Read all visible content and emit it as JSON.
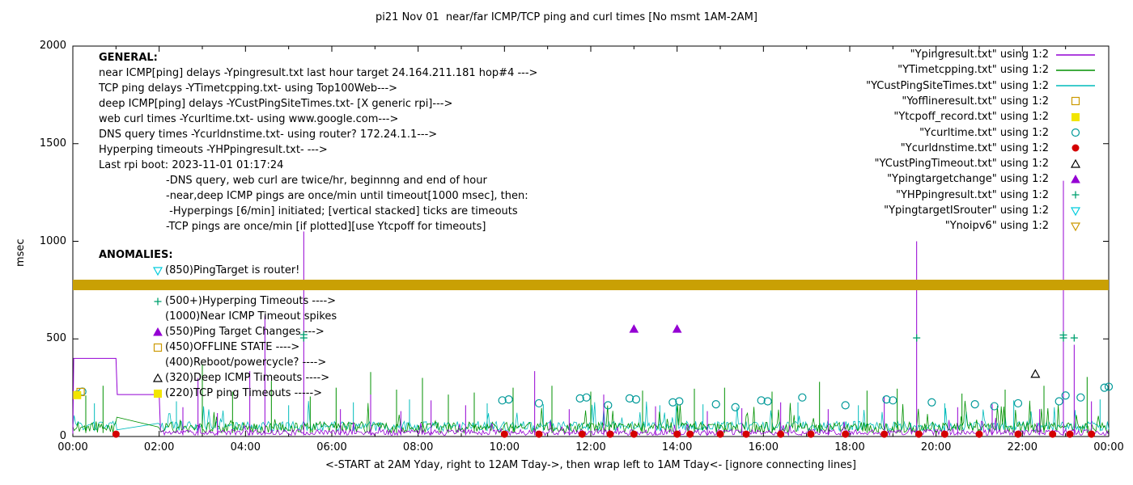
{
  "title": "pi21 Nov 01  near/far ICMP/TCP ping and curl times [No msmt 1AM-2AM]",
  "axes": {
    "ylabel": "msec",
    "xlabel": "<-START at 2AM Yday, right to 12AM Tday->, then wrap left to 1AM Tday<- [ignore connecting lines]",
    "ylim": [
      0,
      2000
    ],
    "yticks": [
      0,
      500,
      1000,
      1500,
      2000
    ],
    "xticks": [
      "00:00",
      "02:00",
      "04:00",
      "06:00",
      "08:00",
      "10:00",
      "12:00",
      "14:00",
      "16:00",
      "18:00",
      "20:00",
      "22:00",
      "00:00"
    ],
    "x_hours_range": [
      0,
      24
    ]
  },
  "legend": [
    {
      "label": "\"Ypingresult.txt\" using 1:2",
      "marker": "line",
      "color": "#9400d3"
    },
    {
      "label": "\"YTimetcpping.txt\" using 1:2",
      "marker": "line",
      "color": "#009100"
    },
    {
      "label": "\"YCustPingSiteTimes.txt\" using 1:2",
      "marker": "line",
      "color": "#00bbbb"
    },
    {
      "label": "\"Yofflineresult.txt\" using 1:2",
      "marker": "square-open",
      "color": "#cc9900"
    },
    {
      "label": "\"Ytcpoff_record.txt\" using 1:2",
      "marker": "square-filled",
      "color": "#f2e500"
    },
    {
      "label": "\"Ycurltime.txt\" using 1:2",
      "marker": "circle-open",
      "color": "#009999"
    },
    {
      "label": "\"Ycurldnstime.txt\" using 1:2",
      "marker": "circle-filled",
      "color": "#d40000"
    },
    {
      "label": "\"YCustPingTimeout.txt\" using 1:2",
      "marker": "triangle-open",
      "color": "#000000"
    },
    {
      "label": "\"Ypingtargetchange\" using 1:2",
      "marker": "triangle-filled",
      "color": "#9400d3"
    },
    {
      "label": "\"YHPpingresult.txt\" using 1:2",
      "marker": "plus",
      "color": "#00a070"
    },
    {
      "label": "\"YpingtargetISrouter\" using 1:2",
      "marker": "triangle-down-open",
      "color": "#00ccdd"
    },
    {
      "label": "\"Ynoipv6\" using 1:2",
      "marker": "triangle-down-open",
      "color": "#cc9900"
    }
  ],
  "general_notes": {
    "heading": "GENERAL:",
    "lines": [
      "near ICMP[ping] delays -Ypingresult.txt last hour target 24.164.211.181 hop#4 --->",
      "TCP ping delays -YTimetcpping.txt- using Top100Web--->",
      "deep ICMP[ping] delays -YCustPingSiteTimes.txt- [X generic rpi]--->",
      "web curl times -Ycurltime.txt- using www.google.com--->",
      "DNS query times -Ycurldnstime.txt- using router? 172.24.1.1--->",
      "Hyperping timeouts -YHPpingresult.txt- --->",
      "Last rpi boot: 2023-11-01 01:17:24"
    ],
    "indented_lines": [
      "-DNS query, web curl are twice/hr, beginnng and end of hour",
      "-near,deep ICMP pings are once/min until timeout[1000 msec], then:",
      " -Hyperpings [6/min] initiated; [vertical stacked] ticks are timeouts",
      "-TCP pings are once/min [if plotted][use Ytcpoff for timeouts]"
    ]
  },
  "anomalies": {
    "heading": "ANOMALIES:",
    "items": [
      {
        "marker": "triangle-down-open",
        "color": "#00ccdd",
        "text": "(850)PingTarget is router!"
      },
      {
        "marker": "none",
        "color": "",
        "text": ""
      },
      {
        "marker": "plus",
        "color": "#00a070",
        "text": "(500+)Hyperping Timeouts ---->"
      },
      {
        "marker": "none",
        "color": "",
        "text": "(1000)Near ICMP Timeout spikes"
      },
      {
        "marker": "triangle-filled",
        "color": "#9400d3",
        "text": "(550)Ping Target Changes --->"
      },
      {
        "marker": "square-open",
        "color": "#cc9900",
        "text": "(450)OFFLINE STATE ---->"
      },
      {
        "marker": "none",
        "color": "",
        "text": "(400)Reboot/powercycle? ---->"
      },
      {
        "marker": "triangle-open",
        "color": "#000000",
        "text": "(320)Deep ICMP Timeouts ---->"
      },
      {
        "marker": "square-filled",
        "color": "#f2e500",
        "text": "(220)TCP ping Timeouts ----->"
      }
    ]
  },
  "chart_data": {
    "type": "line",
    "x_unit": "hours",
    "xlim": [
      0,
      24
    ],
    "ylim": [
      0,
      2000
    ],
    "grid": false,
    "legend_position": "top-right",
    "series": [
      {
        "name": "Ypingresult.txt",
        "style": "line",
        "color": "#9400d3",
        "base": 6,
        "amp": 30,
        "noise_start": 2.03,
        "segments": [
          [
            0,
            15
          ],
          [
            0.02,
            400
          ],
          [
            1.0,
            400
          ],
          [
            1.03,
            215
          ],
          [
            2.0,
            215
          ],
          [
            2.03,
            30
          ]
        ],
        "spikes": [
          [
            2.55,
            150
          ],
          [
            2.9,
            300
          ],
          [
            3.35,
            120
          ],
          [
            4.1,
            335
          ],
          [
            4.45,
            620
          ],
          [
            5.35,
            1050
          ],
          [
            6.2,
            140
          ],
          [
            6.9,
            215
          ],
          [
            7.6,
            130
          ],
          [
            8.3,
            185
          ],
          [
            9.1,
            160
          ],
          [
            10.7,
            335
          ],
          [
            11.5,
            140
          ],
          [
            12.3,
            215
          ],
          [
            13.5,
            155
          ],
          [
            14.7,
            130
          ],
          [
            15.5,
            145
          ],
          [
            16.4,
            175
          ],
          [
            17.5,
            140
          ],
          [
            18.8,
            205
          ],
          [
            19.55,
            1000
          ],
          [
            20.5,
            150
          ],
          [
            21.3,
            165
          ],
          [
            22.4,
            140
          ],
          [
            22.95,
            1310
          ],
          [
            23.2,
            470
          ],
          [
            23.6,
            180
          ]
        ]
      },
      {
        "name": "YTimetcpping.txt",
        "style": "line",
        "color": "#009100",
        "base": 18,
        "amp": 55,
        "noise_start": 0,
        "spikes": [
          [
            0.3,
            210
          ],
          [
            0.7,
            260
          ],
          [
            3.0,
            370
          ],
          [
            3.7,
            230
          ],
          [
            4.6,
            285
          ],
          [
            5.5,
            205
          ],
          [
            6.1,
            250
          ],
          [
            6.9,
            330
          ],
          [
            7.5,
            240
          ],
          [
            8.1,
            300
          ],
          [
            8.7,
            215
          ],
          [
            9.3,
            225
          ],
          [
            10.2,
            250
          ],
          [
            11.1,
            260
          ],
          [
            12.0,
            230
          ],
          [
            13.2,
            235
          ],
          [
            14.4,
            245
          ],
          [
            15.1,
            250
          ],
          [
            16.2,
            230
          ],
          [
            17.3,
            280
          ],
          [
            18.4,
            235
          ],
          [
            19.1,
            245
          ],
          [
            20.6,
            220
          ],
          [
            21.6,
            240
          ],
          [
            22.5,
            260
          ],
          [
            23.5,
            305
          ]
        ]
      },
      {
        "name": "YCustPingSiteTimes.txt",
        "style": "line",
        "color": "#00bbbb",
        "base": 28,
        "amp": 50,
        "noise_start": 0,
        "spikes": [
          [
            0.5,
            170
          ],
          [
            2.4,
            180
          ],
          [
            5.0,
            160
          ],
          [
            6.5,
            175
          ],
          [
            7.8,
            190
          ],
          [
            9.6,
            170
          ],
          [
            10.9,
            165
          ],
          [
            12.0,
            185
          ],
          [
            13.6,
            160
          ],
          [
            14.6,
            165
          ],
          [
            16.8,
            175
          ],
          [
            18.2,
            160
          ],
          [
            20.2,
            170
          ],
          [
            21.8,
            185
          ],
          [
            23.8,
            190
          ]
        ]
      },
      {
        "name": "Ycurltime.txt",
        "style": "points",
        "marker": "circle-open",
        "color": "#009999",
        "points": [
          [
            0.1,
            215
          ],
          [
            0.22,
            230
          ],
          [
            9.95,
            185
          ],
          [
            10.1,
            190
          ],
          [
            10.8,
            170
          ],
          [
            11.75,
            195
          ],
          [
            11.9,
            200
          ],
          [
            12.4,
            160
          ],
          [
            12.9,
            195
          ],
          [
            13.05,
            190
          ],
          [
            13.9,
            175
          ],
          [
            14.05,
            180
          ],
          [
            14.9,
            165
          ],
          [
            15.35,
            150
          ],
          [
            15.95,
            185
          ],
          [
            16.1,
            180
          ],
          [
            16.9,
            200
          ],
          [
            17.9,
            160
          ],
          [
            18.85,
            190
          ],
          [
            19.0,
            185
          ],
          [
            19.9,
            175
          ],
          [
            20.9,
            165
          ],
          [
            21.35,
            155
          ],
          [
            21.9,
            170
          ],
          [
            22.85,
            180
          ],
          [
            23.0,
            210
          ],
          [
            23.35,
            200
          ],
          [
            23.9,
            250
          ],
          [
            24.0,
            255
          ]
        ]
      },
      {
        "name": "Ycurldnstime.txt",
        "style": "points",
        "marker": "circle-filled",
        "color": "#d40000",
        "points": [
          [
            1.0,
            12
          ],
          [
            10.0,
            12
          ],
          [
            10.8,
            12
          ],
          [
            11.8,
            12
          ],
          [
            12.45,
            12
          ],
          [
            13.0,
            12
          ],
          [
            14.0,
            12
          ],
          [
            14.3,
            12
          ],
          [
            15.0,
            12
          ],
          [
            15.6,
            12
          ],
          [
            16.4,
            12
          ],
          [
            17.1,
            12
          ],
          [
            17.9,
            12
          ],
          [
            18.8,
            12
          ],
          [
            19.6,
            12
          ],
          [
            20.2,
            12
          ],
          [
            21.0,
            12
          ],
          [
            21.9,
            12
          ],
          [
            22.7,
            12
          ],
          [
            23.1,
            12
          ],
          [
            23.6,
            12
          ]
        ]
      },
      {
        "name": "YCustPingTimeout.txt",
        "style": "points",
        "marker": "triangle-open",
        "color": "#000000",
        "points": [
          [
            22.3,
            320
          ]
        ]
      },
      {
        "name": "Ypingtargetchange",
        "style": "points",
        "marker": "triangle-filled",
        "color": "#9400d3",
        "points": [
          [
            13.0,
            550
          ],
          [
            14.0,
            550
          ]
        ]
      },
      {
        "name": "Yofflineresult.txt",
        "style": "points",
        "marker": "square-open",
        "color": "#cc9900",
        "points": [
          [
            0.18,
            228
          ]
        ]
      },
      {
        "name": "Ytcpoff_record.txt",
        "style": "points",
        "marker": "square-filled",
        "color": "#f2e500",
        "points": [
          [
            0.1,
            212
          ]
        ]
      },
      {
        "name": "YHPpingresult.txt",
        "style": "points",
        "marker": "plus",
        "color": "#00a070",
        "points": [
          [
            5.35,
            505
          ],
          [
            5.35,
            522
          ],
          [
            19.55,
            505
          ],
          [
            22.95,
            505
          ],
          [
            22.95,
            520
          ],
          [
            23.2,
            505
          ]
        ]
      },
      {
        "name": "Ynoipv6",
        "style": "band",
        "marker": "triangle-down-open",
        "color": "#c9a004",
        "band_y": 775,
        "band_thickness_msec": 55,
        "x_range": [
          0,
          24
        ]
      }
    ]
  }
}
